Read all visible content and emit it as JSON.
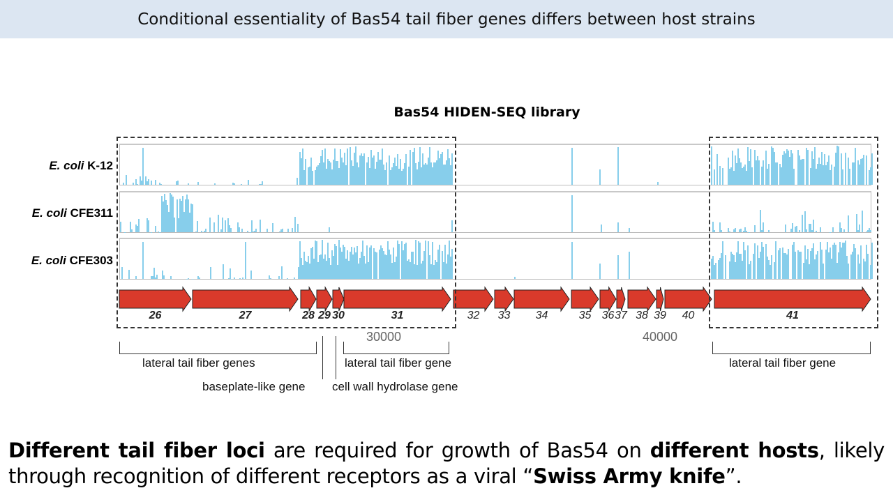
{
  "slide_title": "Conditional essentiality of Bas54 tail fiber genes differs between host strains",
  "figure": {
    "title": "Bas54 HIDEN-SEQ library",
    "tracks": [
      {
        "species": "E. coli",
        "strain": "K-12"
      },
      {
        "species": "E. coli",
        "strain": "CFE311"
      },
      {
        "species": "E. coli",
        "strain": "CFE303"
      }
    ],
    "bar_color": "#87ceeb",
    "gene_color": "#d93a2b",
    "genes": [
      "26",
      "27",
      "28",
      "29",
      "30",
      "31",
      "32",
      "33",
      "34",
      "35",
      "36",
      "37",
      "38",
      "39",
      "40",
      "41"
    ],
    "axis_ticks": [
      "30000",
      "40000"
    ],
    "annotations": {
      "lateral_genes": "lateral tail fiber genes",
      "lateral_gene_mid": "lateral tail fiber gene",
      "lateral_gene_right": "lateral tail fiber gene",
      "baseplate": "baseplate-like gene",
      "hydrolase": "cell wall hydrolase gene"
    }
  },
  "conclusion": {
    "p1": "Different tail fiber loci",
    "p2": " are required for growth of Bas54 on ",
    "p3": "different hosts",
    "p4": ", likely through recognition of different receptors as a viral “",
    "p5": "Swiss Army knife",
    "p6": "”."
  }
}
